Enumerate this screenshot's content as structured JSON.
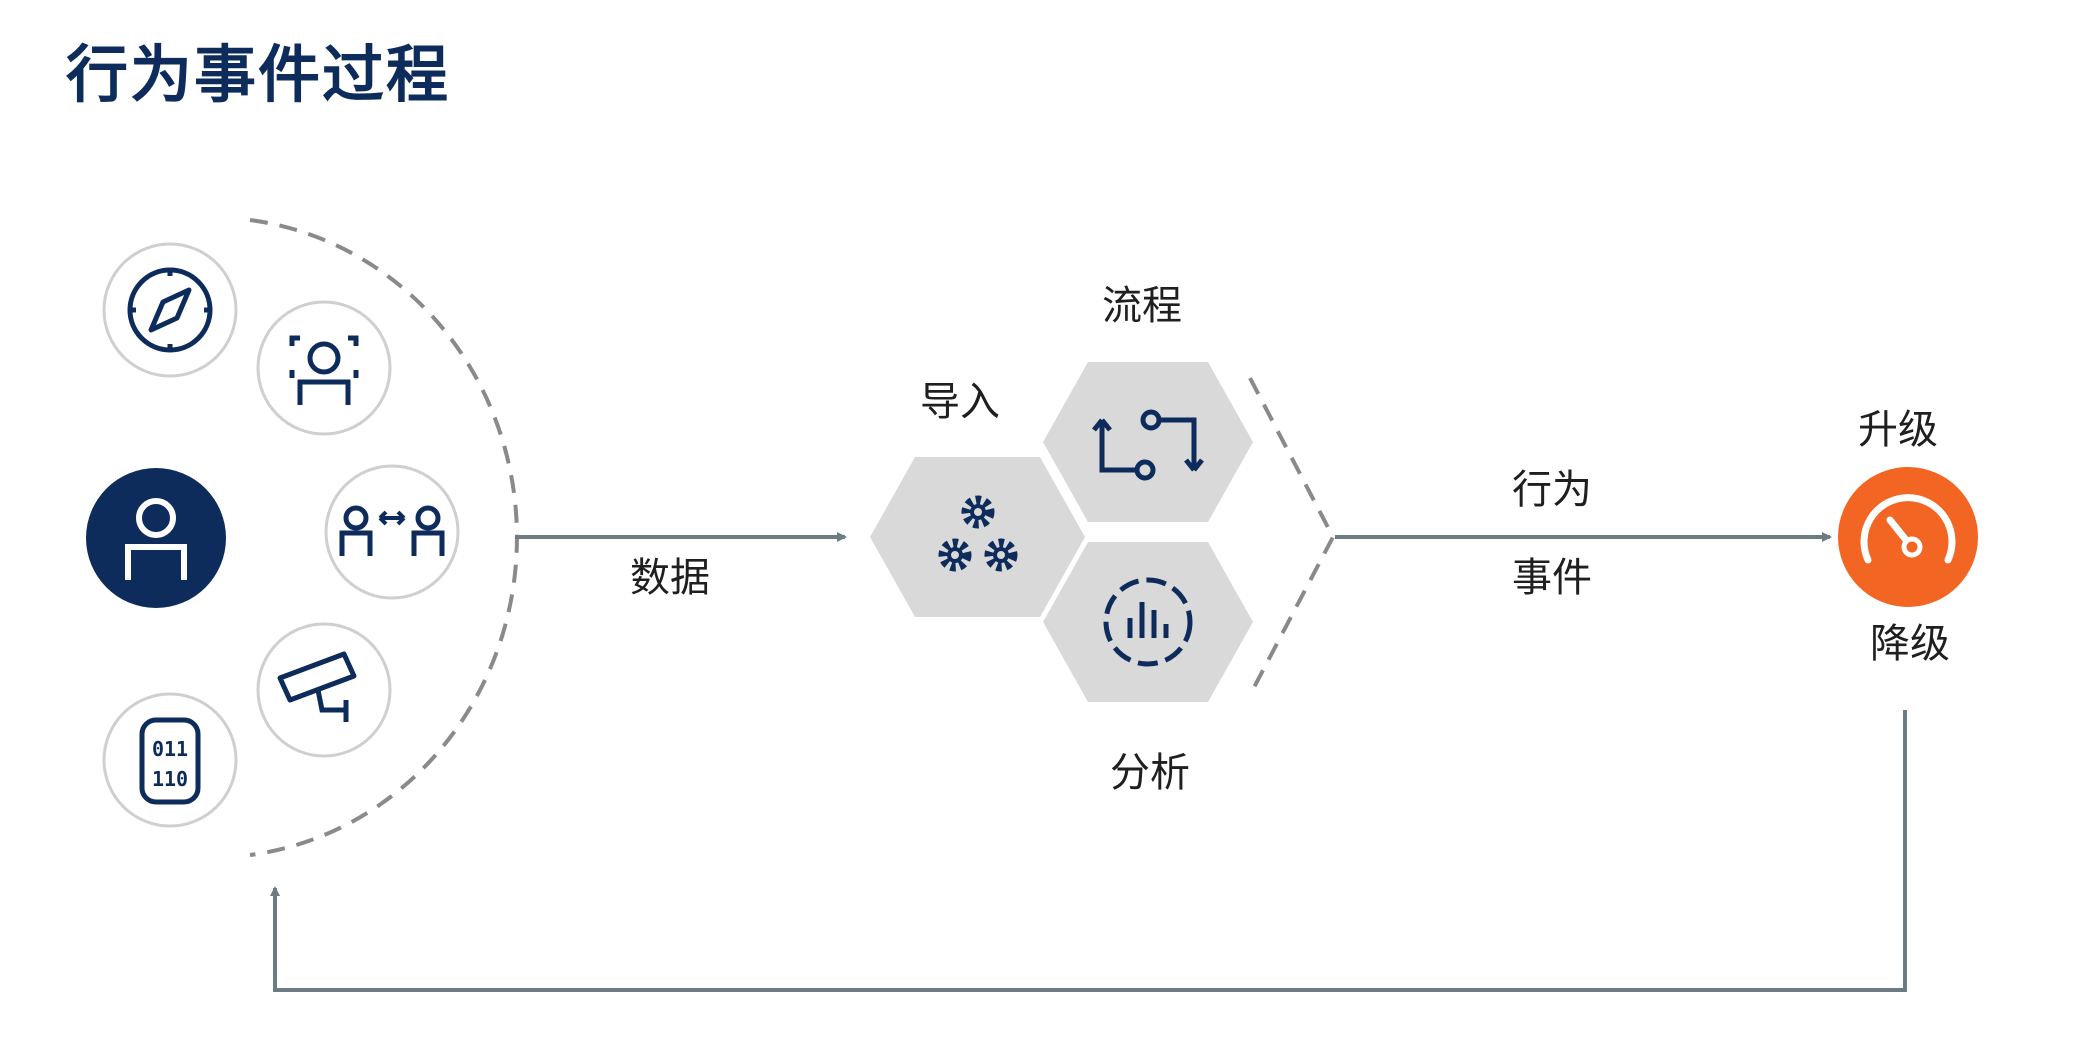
{
  "title": "行为事件过程",
  "labels": {
    "data": "数据",
    "import": "导入",
    "process": "流程",
    "analysis": "分析",
    "behavior": "行为",
    "event": "事件",
    "upgrade": "升级",
    "downgrade": "降级"
  },
  "icons": [
    "compass-icon",
    "face-scan-icon",
    "user-icon",
    "user-exchange-icon",
    "security-camera-icon",
    "binary-database-icon",
    "gears-icon",
    "process-loop-icon",
    "analytics-chart-icon",
    "gauge-icon"
  ],
  "colors": {
    "navy": "#0d2c5b",
    "orange": "#f26522",
    "hexagon": "#d9d9d9",
    "arrow": "#6d7b82",
    "dash": "#8a8a8a",
    "circle_border": "#cfcfcf"
  }
}
